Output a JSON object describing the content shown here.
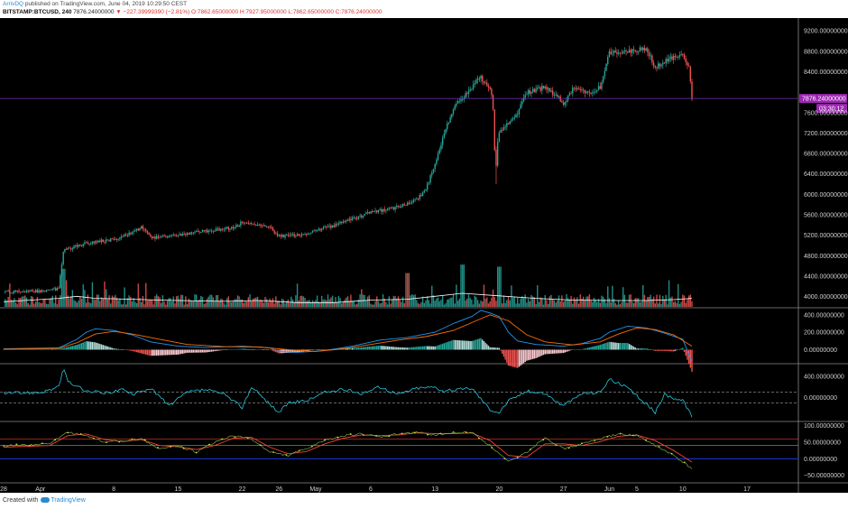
{
  "header": {
    "author": "ArrivDQ",
    "published": "published on TradingView.com, June 04, 2019 10:29:50 CEST",
    "symbol": "BITSTAMP:BTCUSD, 240",
    "last": "7876.24000000",
    "change": "▼ −227.39999390 (−2.81%)",
    "ohlc": "O:7862.65000000 H:7927.95000000 L:7862.65000000 C:7876.24000000"
  },
  "footer": {
    "created_with": "Created with",
    "brand": "TradingView"
  },
  "colors": {
    "up": "#26a69a",
    "down": "#ef5350",
    "price_line": "#7b2fbe",
    "price_label": "#9c27b0",
    "volume_ma": "#ffffff",
    "macd": "#2196f3",
    "signal": "#ff6d00",
    "cci": "#26c6da",
    "stoch_k": "#8bc34a",
    "stoch_d": "#f44336"
  },
  "chart_data": {
    "type": "candlestick",
    "price_axis": {
      "ticks": [
        "9200.00000000",
        "8800.00000000",
        "8400.00000000",
        "8000.00000000",
        "7600.00000000",
        "7200.00000000",
        "6800.00000000",
        "6400.00000000",
        "6000.00000000",
        "5600.00000000",
        "5200.00000000",
        "4800.00000000",
        "4400.00000000",
        "4000.00000000"
      ],
      "tick_values": [
        9200,
        8800,
        8400,
        8000,
        7600,
        7200,
        6800,
        6400,
        6000,
        5600,
        5200,
        4800,
        4400,
        4000
      ],
      "ylim": [
        3800,
        9450
      ]
    },
    "current_price_label": "7876.24000000",
    "current_price": 7876.24,
    "countdown_label": "03:30:12",
    "x_axis": {
      "ticks": [
        "28",
        "Apr",
        "8",
        "15",
        "22",
        "26",
        "May",
        "6",
        "13",
        "20",
        "27",
        "Jun",
        "5",
        "10",
        "17"
      ],
      "tick_days": [
        -4,
        0,
        8,
        15,
        22,
        26,
        30,
        36,
        43,
        50,
        57,
        62,
        65,
        70,
        77
      ],
      "range_days": [
        -4.4,
        82.6
      ]
    },
    "price_path": [
      [
        -4,
        4090
      ],
      [
        0,
        4110
      ],
      [
        2,
        4150
      ],
      [
        2.5,
        4900
      ],
      [
        5,
        5050
      ],
      [
        8,
        5120
      ],
      [
        10,
        5250
      ],
      [
        11,
        5350
      ],
      [
        12,
        5150
      ],
      [
        15,
        5200
      ],
      [
        18,
        5280
      ],
      [
        21,
        5350
      ],
      [
        22,
        5450
      ],
      [
        25,
        5350
      ],
      [
        26,
        5180
      ],
      [
        28,
        5200
      ],
      [
        30,
        5280
      ],
      [
        33,
        5450
      ],
      [
        36,
        5650
      ],
      [
        39,
        5750
      ],
      [
        41,
        5900
      ],
      [
        42,
        6100
      ],
      [
        43,
        6600
      ],
      [
        44,
        7200
      ],
      [
        45,
        7700
      ],
      [
        47,
        8100
      ],
      [
        48,
        8300
      ],
      [
        49,
        8050
      ],
      [
        50,
        7200
      ],
      [
        51,
        7400
      ],
      [
        52,
        7600
      ],
      [
        53,
        8000
      ],
      [
        55,
        8100
      ],
      [
        57,
        7800
      ],
      [
        58,
        8050
      ],
      [
        60,
        8000
      ],
      [
        61,
        8100
      ],
      [
        62,
        8750
      ],
      [
        64,
        8800
      ],
      [
        66,
        8850
      ],
      [
        67,
        8500
      ],
      [
        69,
        8700
      ],
      [
        70,
        8750
      ],
      [
        70.7,
        8450
      ],
      [
        71,
        7900
      ]
    ],
    "volume_panel": {
      "ma_path": [
        [
          -4,
          0.12
        ],
        [
          2,
          0.2
        ],
        [
          4,
          0.25
        ],
        [
          6,
          0.2
        ],
        [
          10,
          0.18
        ],
        [
          15,
          0.15
        ],
        [
          20,
          0.13
        ],
        [
          24,
          0.15
        ],
        [
          28,
          0.1
        ],
        [
          32,
          0.1
        ],
        [
          36,
          0.16
        ],
        [
          40,
          0.18
        ],
        [
          43,
          0.25
        ],
        [
          46,
          0.32
        ],
        [
          50,
          0.26
        ],
        [
          54,
          0.2
        ],
        [
          58,
          0.16
        ],
        [
          62,
          0.15
        ],
        [
          66,
          0.15
        ],
        [
          69,
          0.17
        ],
        [
          71,
          0.2
        ]
      ]
    },
    "macd_panel": {
      "ticks": [
        "400.00000000",
        "200.00000000",
        "0.00000000"
      ],
      "tick_values": [
        400,
        200,
        0
      ],
      "ylim": [
        -150,
        470
      ],
      "macd_path": [
        [
          -4,
          10
        ],
        [
          2,
          20
        ],
        [
          4,
          120
        ],
        [
          5,
          200
        ],
        [
          6,
          240
        ],
        [
          8,
          220
        ],
        [
          10,
          170
        ],
        [
          12,
          90
        ],
        [
          15,
          40
        ],
        [
          18,
          25
        ],
        [
          22,
          40
        ],
        [
          25,
          20
        ],
        [
          26,
          -20
        ],
        [
          28,
          -30
        ],
        [
          31,
          -10
        ],
        [
          34,
          40
        ],
        [
          37,
          110
        ],
        [
          40,
          140
        ],
        [
          43,
          200
        ],
        [
          45,
          300
        ],
        [
          47,
          380
        ],
        [
          48,
          450
        ],
        [
          49,
          420
        ],
        [
          50,
          380
        ],
        [
          51,
          200
        ],
        [
          52,
          100
        ],
        [
          54,
          60
        ],
        [
          57,
          40
        ],
        [
          59,
          70
        ],
        [
          61,
          130
        ],
        [
          62,
          200
        ],
        [
          64,
          270
        ],
        [
          66,
          250
        ],
        [
          68,
          190
        ],
        [
          70,
          120
        ],
        [
          71,
          -140
        ]
      ],
      "signal_path": [
        [
          -4,
          5
        ],
        [
          2,
          15
        ],
        [
          4,
          80
        ],
        [
          6,
          180
        ],
        [
          8,
          210
        ],
        [
          10,
          180
        ],
        [
          13,
          120
        ],
        [
          16,
          60
        ],
        [
          20,
          35
        ],
        [
          24,
          30
        ],
        [
          27,
          0
        ],
        [
          30,
          -20
        ],
        [
          33,
          10
        ],
        [
          36,
          60
        ],
        [
          39,
          110
        ],
        [
          42,
          150
        ],
        [
          45,
          220
        ],
        [
          47,
          310
        ],
        [
          49,
          400
        ],
        [
          51,
          330
        ],
        [
          53,
          170
        ],
        [
          55,
          90
        ],
        [
          58,
          55
        ],
        [
          61,
          90
        ],
        [
          63,
          180
        ],
        [
          65,
          250
        ],
        [
          67,
          230
        ],
        [
          69,
          170
        ],
        [
          71,
          40
        ]
      ]
    },
    "cci_panel": {
      "ticks": [
        "400.00000000",
        "0.00000000"
      ],
      "tick_values": [
        400,
        0
      ],
      "ylim": [
        -430,
        620
      ],
      "levels": [
        100,
        -100
      ],
      "cci_path": [
        [
          -4,
          80
        ],
        [
          0,
          100
        ],
        [
          2,
          200
        ],
        [
          2.5,
          550
        ],
        [
          3,
          300
        ],
        [
          5,
          120
        ],
        [
          7,
          90
        ],
        [
          9,
          150
        ],
        [
          10,
          60
        ],
        [
          12,
          180
        ],
        [
          14,
          -150
        ],
        [
          16,
          100
        ],
        [
          18,
          150
        ],
        [
          20,
          60
        ],
        [
          22,
          -180
        ],
        [
          23,
          200
        ],
        [
          26,
          -280
        ],
        [
          27,
          -100
        ],
        [
          29,
          -60
        ],
        [
          31,
          100
        ],
        [
          33,
          150
        ],
        [
          35,
          80
        ],
        [
          37,
          200
        ],
        [
          39,
          60
        ],
        [
          41,
          180
        ],
        [
          43,
          200
        ],
        [
          44,
          120
        ],
        [
          47,
          180
        ],
        [
          49,
          -220
        ],
        [
          50,
          -280
        ],
        [
          51,
          -60
        ],
        [
          53,
          120
        ],
        [
          55,
          80
        ],
        [
          57,
          -160
        ],
        [
          59,
          80
        ],
        [
          61,
          100
        ],
        [
          62,
          350
        ],
        [
          64,
          180
        ],
        [
          66,
          -120
        ],
        [
          67,
          -280
        ],
        [
          68,
          60
        ],
        [
          70,
          -60
        ],
        [
          71,
          -350
        ]
      ]
    },
    "stoch_panel": {
      "ticks": [
        "100.00000000",
        "50.00000000",
        "0.00000000",
        "−50.00000000"
      ],
      "tick_values": [
        100,
        50,
        0,
        -50
      ],
      "ylim": [
        -70,
        110
      ],
      "levels": [
        60,
        40,
        0
      ],
      "k_path": [
        [
          -4,
          40
        ],
        [
          1,
          45
        ],
        [
          3,
          80
        ],
        [
          5,
          70
        ],
        [
          7,
          50
        ],
        [
          9,
          55
        ],
        [
          11,
          60
        ],
        [
          13,
          30
        ],
        [
          15,
          40
        ],
        [
          17,
          20
        ],
        [
          19,
          50
        ],
        [
          21,
          70
        ],
        [
          23,
          60
        ],
        [
          25,
          20
        ],
        [
          27,
          10
        ],
        [
          29,
          30
        ],
        [
          31,
          55
        ],
        [
          33,
          70
        ],
        [
          35,
          75
        ],
        [
          37,
          65
        ],
        [
          39,
          75
        ],
        [
          41,
          80
        ],
        [
          43,
          72
        ],
        [
          45,
          78
        ],
        [
          47,
          80
        ],
        [
          49,
          40
        ],
        [
          51,
          -10
        ],
        [
          53,
          20
        ],
        [
          55,
          65
        ],
        [
          57,
          30
        ],
        [
          59,
          45
        ],
        [
          61,
          60
        ],
        [
          63,
          75
        ],
        [
          65,
          70
        ],
        [
          67,
          40
        ],
        [
          69,
          10
        ],
        [
          71,
          -30
        ]
      ],
      "d_path": [
        [
          -4,
          35
        ],
        [
          1,
          40
        ],
        [
          3,
          70
        ],
        [
          5,
          75
        ],
        [
          7,
          58
        ],
        [
          9,
          52
        ],
        [
          11,
          58
        ],
        [
          13,
          40
        ],
        [
          15,
          36
        ],
        [
          17,
          28
        ],
        [
          19,
          40
        ],
        [
          21,
          62
        ],
        [
          23,
          65
        ],
        [
          25,
          35
        ],
        [
          27,
          15
        ],
        [
          29,
          22
        ],
        [
          31,
          45
        ],
        [
          33,
          62
        ],
        [
          35,
          72
        ],
        [
          37,
          70
        ],
        [
          39,
          72
        ],
        [
          41,
          78
        ],
        [
          43,
          76
        ],
        [
          45,
          76
        ],
        [
          47,
          78
        ],
        [
          49,
          55
        ],
        [
          51,
          10
        ],
        [
          53,
          5
        ],
        [
          55,
          45
        ],
        [
          57,
          45
        ],
        [
          59,
          40
        ],
        [
          61,
          52
        ],
        [
          63,
          68
        ],
        [
          65,
          72
        ],
        [
          67,
          55
        ],
        [
          69,
          25
        ],
        [
          71,
          -10
        ]
      ]
    }
  }
}
